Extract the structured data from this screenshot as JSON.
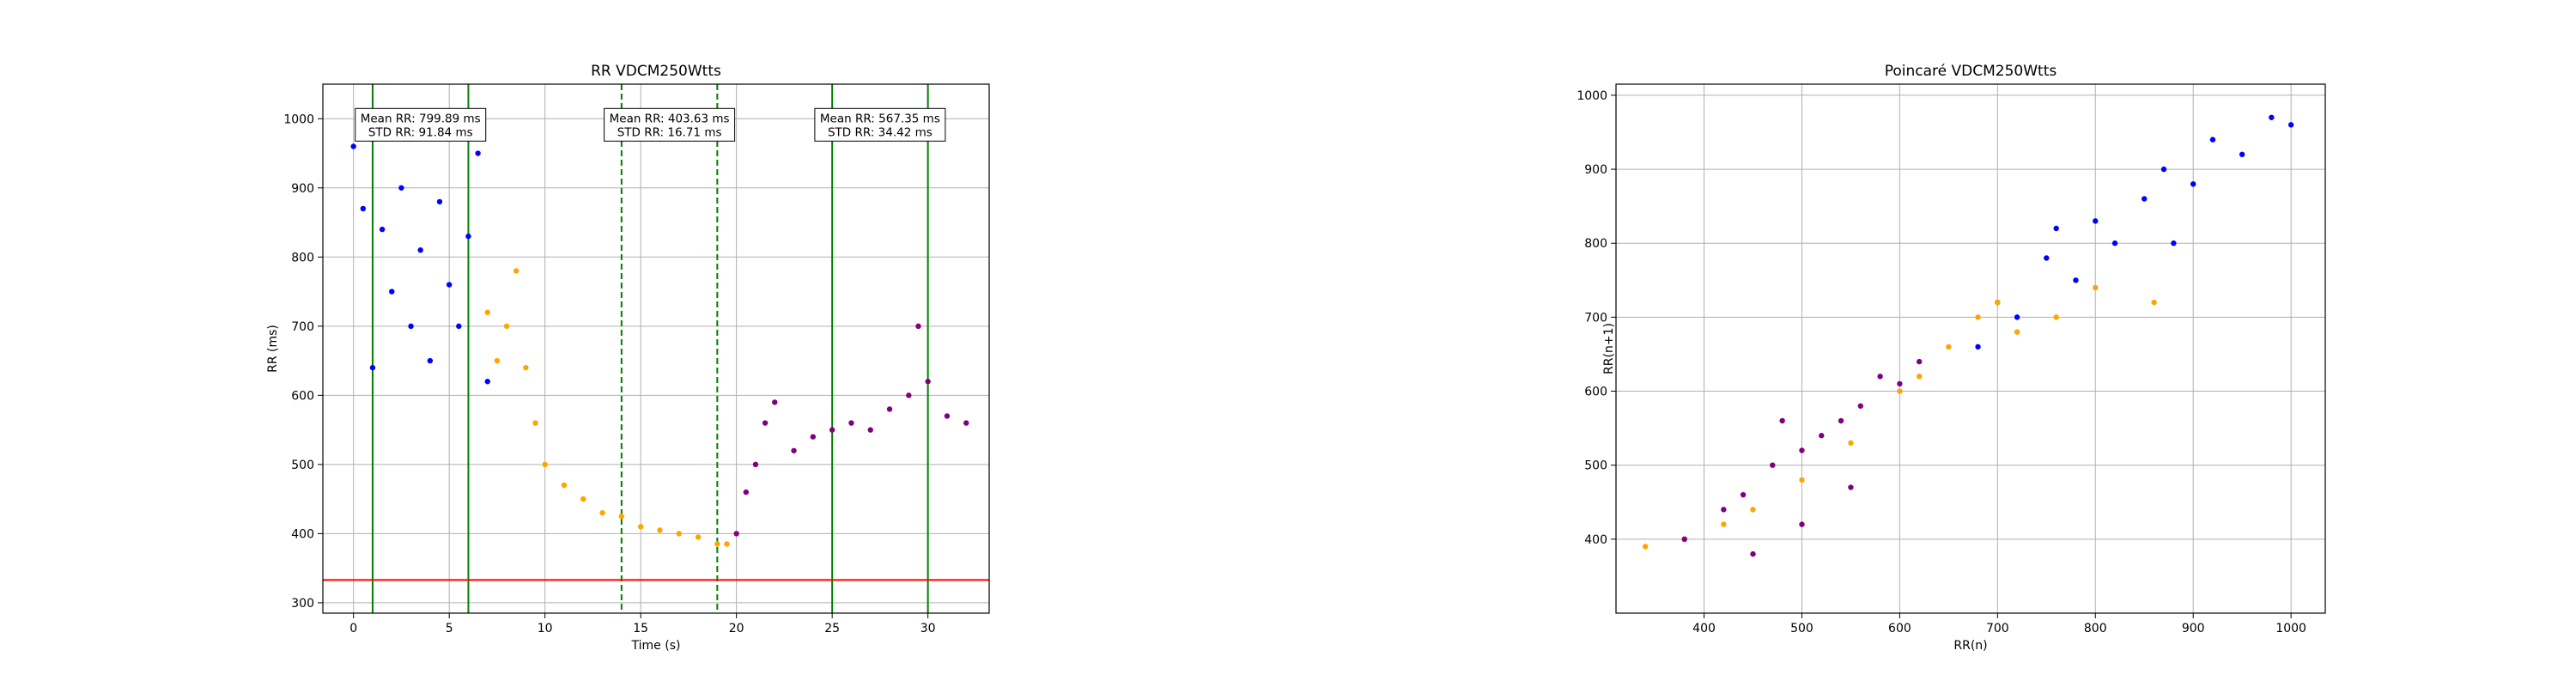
{
  "chart_data": [
    {
      "type": "scatter",
      "title": "RR VDCM250Wtts",
      "xlabel": "Time (s)",
      "ylabel": "RR (ms)",
      "xlim": [
        -1.6,
        33.2
      ],
      "ylim": [
        285,
        1050
      ],
      "xticks": [
        0,
        5,
        10,
        15,
        20,
        25,
        30
      ],
      "yticks": [
        300,
        400,
        500,
        600,
        700,
        800,
        900,
        1000
      ],
      "grid": true,
      "colors": {
        "phase1": "#0000ff",
        "phase2": "#ffa500",
        "phase3": "#800080",
        "vline_solid": "#008000",
        "vline_dashed": "#008000",
        "threshold": "#ff0000"
      },
      "series": [
        {
          "color": "#0000ff",
          "x": [
            0.0,
            0.5,
            1.0,
            1.5,
            2.0,
            2.5,
            3.0,
            3.5,
            4.0,
            4.5,
            5.0,
            5.5,
            6.0,
            6.5,
            7.0
          ],
          "y": [
            960,
            870,
            640,
            840,
            750,
            900,
            700,
            810,
            650,
            880,
            760,
            700,
            830,
            950,
            620
          ]
        },
        {
          "color": "#ffa500",
          "x": [
            7.0,
            7.5,
            8.0,
            8.5,
            9.0,
            9.5,
            10.0,
            11.0,
            12.0,
            13.0,
            14.0,
            15.0,
            16.0,
            17.0,
            18.0,
            19.0,
            19.5
          ],
          "y": [
            720,
            650,
            700,
            780,
            640,
            560,
            500,
            470,
            450,
            430,
            425,
            410,
            405,
            400,
            395,
            385,
            385
          ]
        },
        {
          "color": "#800080",
          "x": [
            20.0,
            20.5,
            21.0,
            21.5,
            22.0,
            23.0,
            24.0,
            25.0,
            26.0,
            27.0,
            28.0,
            29.0,
            29.5,
            30.0,
            31.0,
            32.0
          ],
          "y": [
            400,
            460,
            500,
            560,
            590,
            520,
            540,
            550,
            560,
            550,
            580,
            600,
            700,
            620,
            570,
            560
          ]
        }
      ],
      "vlines": [
        {
          "x": 1.0,
          "style": "solid"
        },
        {
          "x": 6.0,
          "style": "solid"
        },
        {
          "x": 14.0,
          "style": "dashed"
        },
        {
          "x": 19.0,
          "style": "dashed"
        },
        {
          "x": 25.0,
          "style": "solid"
        },
        {
          "x": 30.0,
          "style": "solid"
        }
      ],
      "hline": {
        "y": 333
      },
      "annotations": [
        {
          "x": 3.5,
          "y": 990,
          "line1": "Mean RR: 799.89 ms",
          "line2": "STD RR: 91.84 ms"
        },
        {
          "x": 16.5,
          "y": 990,
          "line1": "Mean RR: 403.63 ms",
          "line2": "STD RR: 16.71 ms"
        },
        {
          "x": 27.5,
          "y": 990,
          "line1": "Mean RR: 567.35 ms",
          "line2": "STD RR: 34.42 ms"
        }
      ]
    },
    {
      "type": "scatter",
      "title": "Poincaré VDCM250Wtts",
      "xlabel": "RR(n)",
      "ylabel": "RR(n+1)",
      "xlim": [
        310,
        1035
      ],
      "ylim": [
        300,
        1015
      ],
      "xticks": [
        400,
        500,
        600,
        700,
        800,
        900,
        1000
      ],
      "yticks": [
        400,
        500,
        600,
        700,
        800,
        900,
        1000
      ],
      "grid": true,
      "series": [
        {
          "color": "#0000ff",
          "x": [
            680,
            700,
            720,
            750,
            780,
            800,
            820,
            850,
            870,
            900,
            920,
            950,
            980,
            1000,
            760,
            880
          ],
          "y": [
            660,
            720,
            700,
            780,
            750,
            830,
            800,
            860,
            900,
            880,
            940,
            920,
            970,
            960,
            820,
            800
          ]
        },
        {
          "color": "#ffa500",
          "x": [
            340,
            380,
            420,
            450,
            500,
            550,
            600,
            620,
            650,
            680,
            700,
            720,
            760,
            800,
            860
          ],
          "y": [
            390,
            400,
            420,
            440,
            480,
            530,
            600,
            620,
            660,
            700,
            720,
            680,
            700,
            740,
            720
          ]
        },
        {
          "color": "#800080",
          "x": [
            380,
            420,
            440,
            470,
            500,
            520,
            540,
            560,
            580,
            600,
            620,
            450,
            500,
            550,
            480
          ],
          "y": [
            400,
            440,
            460,
            500,
            520,
            540,
            560,
            580,
            620,
            610,
            640,
            380,
            420,
            470,
            560
          ]
        }
      ]
    }
  ]
}
